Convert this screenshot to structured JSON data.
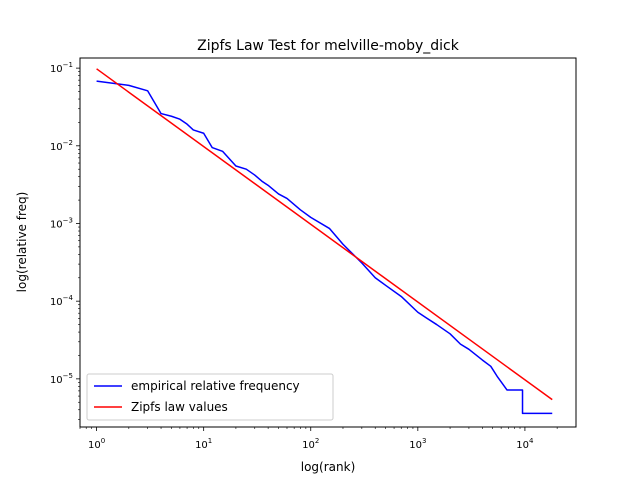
{
  "chart_data": {
    "type": "line",
    "title": "Zipfs Law Test for melville-moby_dick",
    "xlabel": "log(rank)",
    "ylabel": "log(relative freq)",
    "xscale": "log",
    "yscale": "log",
    "xlim": [
      0.7,
      30000
    ],
    "ylim": [
      2.4e-06,
      0.135
    ],
    "x_ticks": [
      {
        "value": 1,
        "base": "10",
        "exp": "0"
      },
      {
        "value": 10,
        "base": "10",
        "exp": "1"
      },
      {
        "value": 100,
        "base": "10",
        "exp": "2"
      },
      {
        "value": 1000,
        "base": "10",
        "exp": "3"
      },
      {
        "value": 10000,
        "base": "10",
        "exp": "4"
      }
    ],
    "y_ticks": [
      {
        "value": 1e-05,
        "base": "10",
        "exp": "−5"
      },
      {
        "value": 0.0001,
        "base": "10",
        "exp": "−4"
      },
      {
        "value": 0.001,
        "base": "10",
        "exp": "−3"
      },
      {
        "value": 0.01,
        "base": "10",
        "exp": "−2"
      },
      {
        "value": 0.1,
        "base": "10",
        "exp": "−1"
      }
    ],
    "grid": false,
    "legend_position": "lower-left",
    "series": [
      {
        "name": "empirical relative frequency",
        "color": "#0000ff",
        "x": [
          1,
          2,
          3,
          4,
          5,
          6,
          7,
          8,
          10,
          12,
          15,
          20,
          25,
          30,
          35,
          40,
          50,
          60,
          80,
          100,
          150,
          200,
          300,
          400,
          500,
          700,
          1000,
          1200,
          1500,
          2000,
          2500,
          3000,
          4000,
          5000,
          7000,
          10000,
          18000
        ],
        "y": [
          0.068,
          0.06,
          0.051,
          0.026,
          0.024,
          0.022,
          0.019,
          0.016,
          0.0145,
          0.0095,
          0.0085,
          0.0055,
          0.005,
          0.0042,
          0.0035,
          0.0031,
          0.0024,
          0.0021,
          0.0015,
          0.0012,
          0.00086,
          0.00054,
          0.00031,
          0.0002,
          0.00016,
          0.000115,
          7.2e-05,
          6.1e-05,
          5e-05,
          3.8e-05,
          2.8e-05,
          2.4e-05,
          1.8e-05,
          1.4e-05,
          1.05e-05,
          7.2e-06,
          3.6e-06
        ],
        "step_points": [
          {
            "x": 4000,
            "y": 1.75e-05
          },
          {
            "x": 4800,
            "y": 1.45e-05
          },
          {
            "x": 5500,
            "y": 1.08e-05
          },
          {
            "x": 6800,
            "y": 7.2e-06
          },
          {
            "x": 9500,
            "y": 7.2e-06
          },
          {
            "x": 9500,
            "y": 3.6e-06
          },
          {
            "x": 18000,
            "y": 3.6e-06
          }
        ]
      },
      {
        "name": "Zipfs law values",
        "color": "#ff0000",
        "x": [
          1,
          18000
        ],
        "y": [
          0.098,
          5.4e-06
        ]
      }
    ]
  }
}
